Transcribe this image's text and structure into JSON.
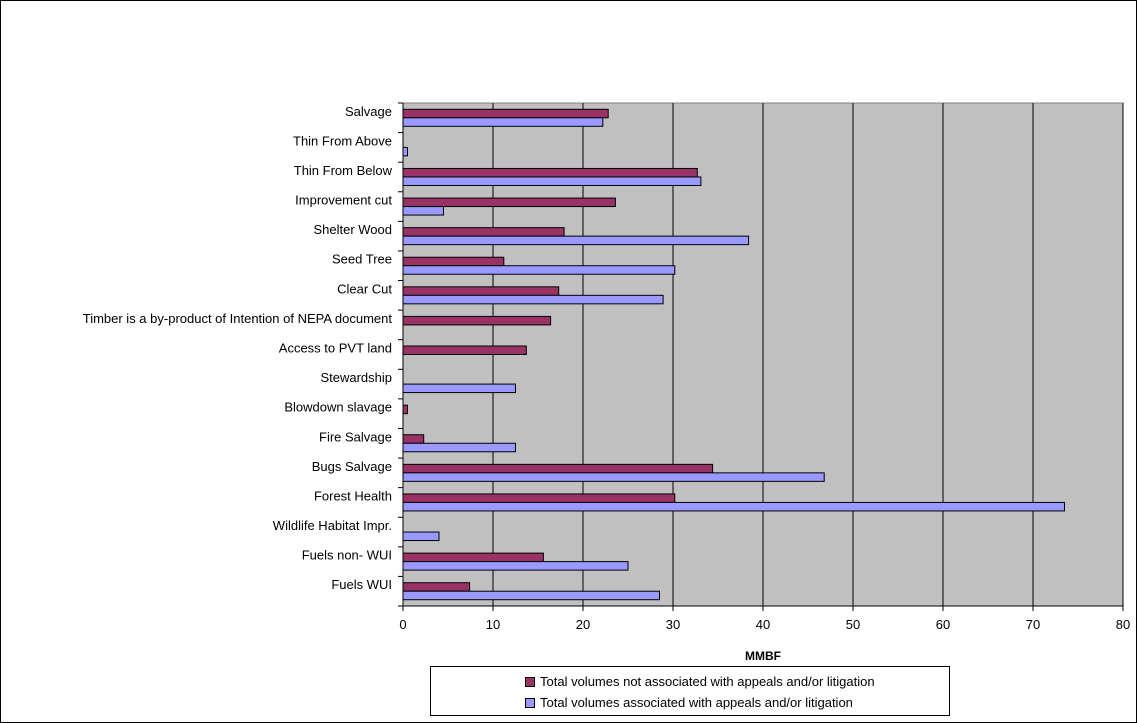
{
  "chart_data": {
    "type": "bar",
    "orientation": "horizontal",
    "categories": [
      "Salvage",
      "Thin From Above",
      "Thin From Below",
      "Improvement cut",
      "Shelter Wood",
      "Seed Tree",
      "Clear Cut",
      "Timber is a by-product of Intention of NEPA document",
      "Access to PVT land",
      "Stewardship",
      "Blowdown slavage",
      "Fire Salvage",
      "Bugs Salvage",
      "Forest Health",
      "Wildlife Habitat Impr.",
      "Fuels non- WUI",
      "Fuels WUI"
    ],
    "series": [
      {
        "name": "Total volumes not associated with appeals and/or litigation",
        "color": "#993366",
        "values": [
          22.8,
          0,
          32.7,
          23.6,
          17.9,
          11.2,
          17.3,
          16.4,
          13.7,
          0,
          0.5,
          2.3,
          34.4,
          30.2,
          0,
          15.6,
          7.4
        ]
      },
      {
        "name": "Total volumes associated with appeals and/or litigation",
        "color": "#9999ff",
        "values": [
          22.2,
          0.5,
          33.1,
          4.5,
          38.4,
          30.2,
          28.9,
          0,
          0,
          12.5,
          0,
          12.5,
          46.8,
          73.5,
          4.0,
          25.0,
          28.5
        ]
      }
    ],
    "xlabel": "MMBF",
    "xlim": [
      0,
      80
    ],
    "xticks": [
      "0",
      "10",
      "20",
      "30",
      "40",
      "50",
      "60",
      "70",
      "80"
    ],
    "grid": true,
    "plot_background": "#c0c0c0",
    "legend_position": "bottom"
  }
}
